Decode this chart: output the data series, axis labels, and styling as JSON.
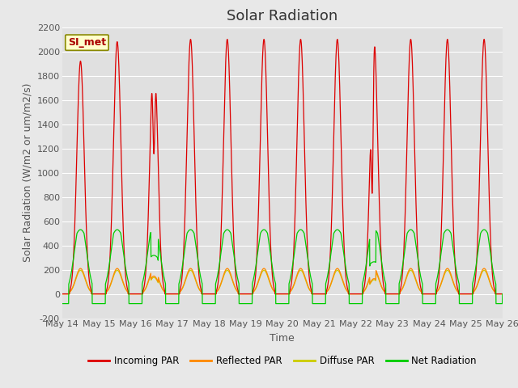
{
  "title": "Solar Radiation",
  "xlabel": "Time",
  "ylabel": "Solar Radiation (W/m2 or um/m2/s)",
  "ylim": [
    -200,
    2200
  ],
  "yticks": [
    -200,
    0,
    200,
    400,
    600,
    800,
    1000,
    1200,
    1400,
    1600,
    1800,
    2000,
    2200
  ],
  "x_tick_labels": [
    "May 14",
    "May 15",
    "May 16",
    "May 17",
    "May 18",
    "May 19",
    "May 20",
    "May 21",
    "May 22",
    "May 23",
    "May 24",
    "May 25",
    "May 26"
  ],
  "total_days": 12,
  "annotation_text": "SI_met",
  "annotation_bg": "#ffffcc",
  "annotation_border": "#888800",
  "fig_bg": "#e8e8e8",
  "plot_bg": "#e0e0e0",
  "colors": {
    "incoming": "#dd0000",
    "reflected": "#ff8800",
    "diffuse": "#cccc00",
    "net": "#00cc00"
  },
  "legend_labels": [
    "Incoming PAR",
    "Reflected PAR",
    "Diffuse PAR",
    "Net Radiation"
  ],
  "title_fontsize": 13,
  "label_fontsize": 9,
  "tick_fontsize": 8
}
